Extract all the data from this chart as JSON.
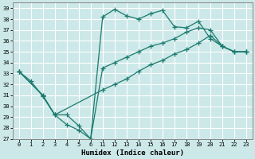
{
  "xlabel": "Humidex (Indice chaleur)",
  "bg_color": "#cce8e8",
  "grid_color": "#ffffff",
  "line_color": "#1a7a6e",
  "ylim": [
    27,
    39.5
  ],
  "yticks": [
    27,
    28,
    29,
    30,
    31,
    32,
    33,
    34,
    35,
    36,
    37,
    38,
    39
  ],
  "xlim": [
    -0.5,
    19.5
  ],
  "xtick_positions": [
    0,
    1,
    2,
    3,
    4,
    5,
    6,
    7,
    8,
    9,
    10,
    11,
    12,
    13,
    14,
    15,
    16,
    17,
    18,
    19
  ],
  "xtick_labels": [
    "0",
    "1",
    "2",
    "3",
    "4",
    "5",
    "6",
    "11",
    "12",
    "13",
    "14",
    "15",
    "16",
    "17",
    "18",
    "19",
    "20",
    "21",
    "22",
    "23"
  ],
  "line1_x": [
    0,
    1,
    2,
    3,
    4,
    5,
    6,
    7,
    8,
    9,
    10,
    11,
    12,
    13,
    14,
    15,
    16,
    17,
    18,
    19
  ],
  "line1_y": [
    33.2,
    32.3,
    30.9,
    29.2,
    28.3,
    27.8,
    27.0,
    38.2,
    38.9,
    38.3,
    38.0,
    38.5,
    38.8,
    37.3,
    37.2,
    37.8,
    36.2,
    35.5,
    35.0,
    35.0
  ],
  "line2_x": [
    0,
    2,
    3,
    4,
    5,
    6,
    7,
    8,
    9,
    10,
    11,
    12,
    13,
    14,
    15,
    16,
    17,
    18,
    19
  ],
  "line2_y": [
    33.2,
    31.0,
    29.2,
    29.2,
    28.2,
    27.0,
    33.5,
    34.0,
    34.5,
    35.0,
    35.5,
    35.8,
    36.2,
    36.8,
    37.2,
    37.0,
    35.5,
    35.0,
    35.0
  ],
  "line3_x": [
    0,
    2,
    3,
    7,
    8,
    9,
    10,
    11,
    12,
    13,
    14,
    15,
    16,
    17,
    18,
    19
  ],
  "line3_y": [
    33.2,
    31.0,
    29.2,
    31.5,
    32.0,
    32.5,
    33.2,
    33.8,
    34.2,
    34.8,
    35.2,
    35.8,
    36.5,
    35.5,
    35.0,
    35.0
  ]
}
